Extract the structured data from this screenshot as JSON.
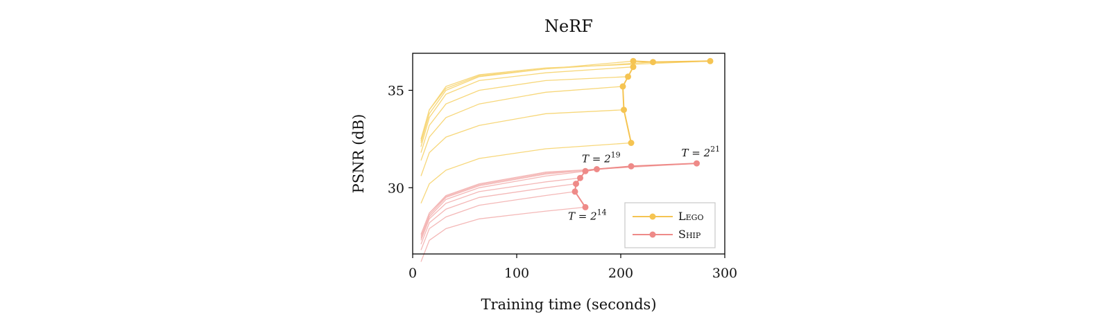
{
  "chart_data": {
    "type": "line",
    "title": "NeRF",
    "xlabel": "Training time (seconds)",
    "ylabel": "PSNR (dB)",
    "xlim": [
      0,
      300
    ],
    "ylim": [
      26.6,
      36.9
    ],
    "xticks": [
      0,
      100,
      200,
      300
    ],
    "yticks": [
      30,
      35
    ],
    "grid": false,
    "legend_position": "bottom-right",
    "colors": {
      "lego": "#f5c452",
      "ship": "#ee8a88",
      "lego_faint": "#f7d77a",
      "ship_faint": "#f4b8b7"
    },
    "series": [
      {
        "name": "Lego",
        "color": "#f5c452",
        "x": [
          210,
          203,
          202,
          207,
          212,
          212,
          231,
          286
        ],
        "y": [
          32.3,
          34.0,
          35.2,
          35.7,
          36.2,
          36.5,
          36.45,
          36.5
        ]
      },
      {
        "name": "Ship",
        "color": "#ee8a88",
        "x": [
          166,
          156,
          157,
          161,
          166,
          177,
          210,
          273
        ],
        "y": [
          29.0,
          29.8,
          30.2,
          30.5,
          30.85,
          30.95,
          31.1,
          31.25
        ]
      }
    ],
    "lego_curves": [
      {
        "x": [
          8,
          16,
          32,
          64,
          128,
          210
        ],
        "y": [
          29.2,
          30.2,
          30.9,
          31.5,
          32.0,
          32.3
        ]
      },
      {
        "x": [
          8,
          16,
          32,
          64,
          128,
          203
        ],
        "y": [
          30.6,
          31.8,
          32.6,
          33.2,
          33.8,
          34.0
        ]
      },
      {
        "x": [
          8,
          16,
          32,
          64,
          128,
          202
        ],
        "y": [
          31.4,
          32.6,
          33.6,
          34.3,
          34.9,
          35.2
        ]
      },
      {
        "x": [
          8,
          16,
          32,
          64,
          128,
          207
        ],
        "y": [
          31.8,
          33.2,
          34.3,
          35.0,
          35.5,
          35.7
        ]
      },
      {
        "x": [
          8,
          16,
          32,
          64,
          128,
          212
        ],
        "y": [
          32.1,
          33.6,
          34.8,
          35.5,
          35.9,
          36.2
        ]
      },
      {
        "x": [
          8,
          16,
          32,
          64,
          128,
          212
        ],
        "y": [
          32.3,
          33.8,
          35.0,
          35.7,
          36.1,
          36.5
        ]
      },
      {
        "x": [
          8,
          16,
          32,
          64,
          128,
          231
        ],
        "y": [
          32.4,
          34.0,
          35.1,
          35.75,
          36.1,
          36.45
        ]
      },
      {
        "x": [
          8,
          16,
          32,
          64,
          128,
          286
        ],
        "y": [
          32.5,
          34.0,
          35.2,
          35.8,
          36.15,
          36.5
        ]
      }
    ],
    "ship_curves": [
      {
        "x": [
          8,
          16,
          32,
          64,
          128,
          166
        ],
        "y": [
          26.2,
          27.3,
          27.9,
          28.4,
          28.8,
          29.0
        ]
      },
      {
        "x": [
          8,
          16,
          32,
          64,
          128,
          156
        ],
        "y": [
          26.8,
          27.9,
          28.5,
          29.1,
          29.6,
          29.8
        ]
      },
      {
        "x": [
          8,
          16,
          32,
          64,
          128,
          157
        ],
        "y": [
          27.1,
          28.2,
          28.9,
          29.5,
          30.0,
          30.2
        ]
      },
      {
        "x": [
          8,
          16,
          32,
          64,
          128,
          161
        ],
        "y": [
          27.3,
          28.4,
          29.2,
          29.8,
          30.3,
          30.5
        ]
      },
      {
        "x": [
          8,
          16,
          32,
          64,
          128,
          166
        ],
        "y": [
          27.4,
          28.5,
          29.4,
          30.0,
          30.6,
          30.85
        ]
      },
      {
        "x": [
          8,
          16,
          32,
          64,
          128,
          177
        ],
        "y": [
          27.5,
          28.6,
          29.5,
          30.1,
          30.7,
          30.95
        ]
      },
      {
        "x": [
          8,
          16,
          32,
          64,
          128,
          210
        ],
        "y": [
          27.6,
          28.7,
          29.55,
          30.15,
          30.75,
          31.1
        ]
      },
      {
        "x": [
          8,
          16,
          32,
          64,
          128,
          273
        ],
        "y": [
          27.6,
          28.7,
          29.6,
          30.2,
          30.8,
          31.25
        ]
      }
    ],
    "annotations": [
      {
        "base": "T = 2",
        "exp": "14",
        "x": 166,
        "y": 29.0
      },
      {
        "base": "T = 2",
        "exp": "19",
        "x": 166,
        "y": 30.85
      },
      {
        "base": "T = 2",
        "exp": "21",
        "x": 273,
        "y": 31.25
      }
    ]
  }
}
